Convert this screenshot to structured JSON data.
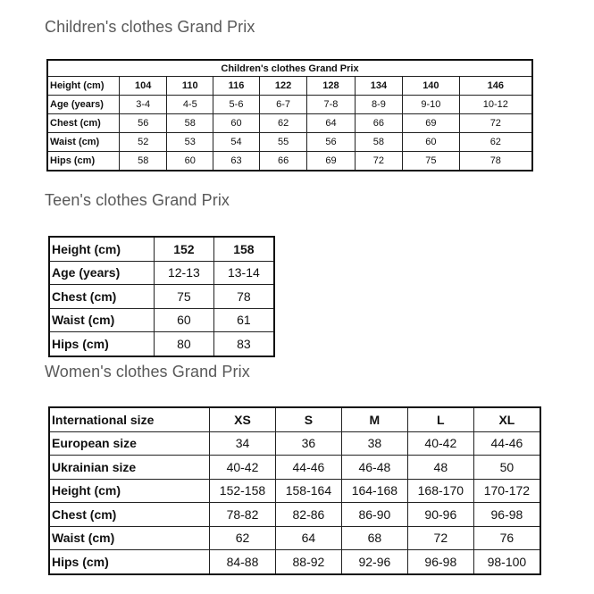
{
  "children": {
    "heading": "Children's clothes Grand Prix",
    "caption": "Children's clothes Grand Prix",
    "rows": [
      {
        "label": "Height (cm)",
        "values": [
          "104",
          "110",
          "116",
          "122",
          "128",
          "134",
          "140",
          "146"
        ]
      },
      {
        "label": "Age (years)",
        "values": [
          "3-4",
          "4-5",
          "5-6",
          "6-7",
          "7-8",
          "8-9",
          "9-10",
          "10-12"
        ]
      },
      {
        "label": "Chest (cm)",
        "values": [
          "56",
          "58",
          "60",
          "62",
          "64",
          "66",
          "69",
          "72"
        ]
      },
      {
        "label": "Waist (cm)",
        "values": [
          "52",
          "53",
          "54",
          "55",
          "56",
          "58",
          "60",
          "62"
        ]
      },
      {
        "label": "Hips (cm)",
        "values": [
          "58",
          "60",
          "63",
          "66",
          "69",
          "72",
          "75",
          "78"
        ]
      }
    ]
  },
  "teen": {
    "heading": "Teen's clothes Grand Prix",
    "rows": [
      {
        "label": "Height (cm)",
        "values": [
          "152",
          "158"
        ]
      },
      {
        "label": "Age (years)",
        "values": [
          "12-13",
          "13-14"
        ]
      },
      {
        "label": "Chest (cm)",
        "values": [
          "75",
          "78"
        ]
      },
      {
        "label": "Waist (cm)",
        "values": [
          "60",
          "61"
        ]
      },
      {
        "label": "Hips (cm)",
        "values": [
          "80",
          "83"
        ]
      }
    ]
  },
  "women": {
    "heading": "Women's clothes Grand Prix",
    "rows": [
      {
        "label": "International size",
        "values": [
          "XS",
          "S",
          "M",
          "L",
          "XL"
        ]
      },
      {
        "label": "European size",
        "values": [
          "34",
          "36",
          "38",
          "40-42",
          "44-46"
        ]
      },
      {
        "label": "Ukrainian size",
        "values": [
          "40-42",
          "44-46",
          "46-48",
          "48",
          "50"
        ]
      },
      {
        "label": "Height (cm)",
        "values": [
          "152-158",
          "158-164",
          "164-168",
          "168-170",
          "170-172"
        ]
      },
      {
        "label": "Chest (cm)",
        "values": [
          "78-82",
          "82-86",
          "86-90",
          "90-96",
          "96-98"
        ]
      },
      {
        "label": "Waist (cm)",
        "values": [
          "62",
          "64",
          "68",
          "72",
          "76"
        ]
      },
      {
        "label": "Hips (cm)",
        "values": [
          "84-88",
          "88-92",
          "92-96",
          "96-98",
          "98-100"
        ]
      }
    ]
  }
}
